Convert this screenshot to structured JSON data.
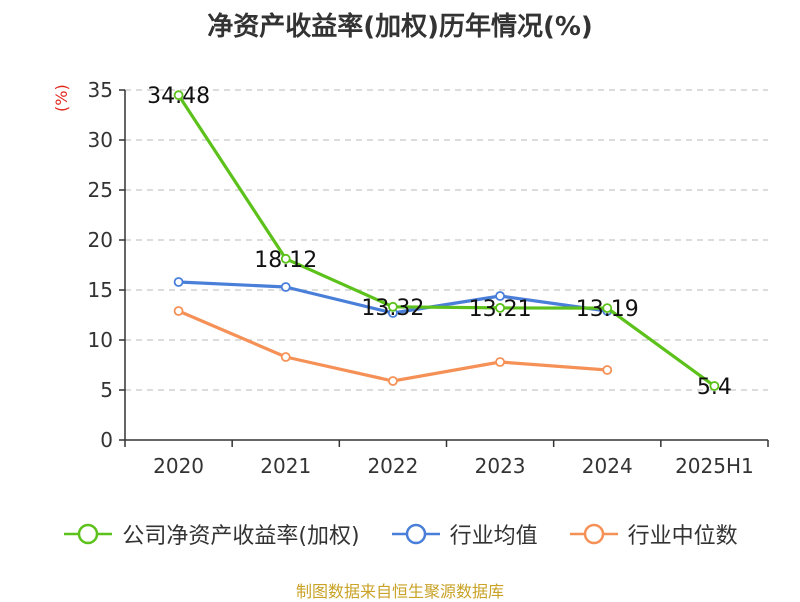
{
  "title": "净资产收益率(加权)历年情况(%)",
  "source": "制图数据来自恒生聚源数据库",
  "chart_data": {
    "type": "line",
    "title": "净资产收益率(加权)历年情况(%)",
    "xlabel": "",
    "ylabel": "(%)",
    "categories": [
      "2020",
      "2021",
      "2022",
      "2023",
      "2024",
      "2025H1"
    ],
    "ylim": [
      0,
      35
    ],
    "yticks": [
      0,
      5,
      10,
      15,
      20,
      25,
      30,
      35
    ],
    "grid": true,
    "legend_position": "bottom",
    "series": [
      {
        "name": "公司净资产收益率(加权)",
        "color": "#5cc21b",
        "values": [
          34.48,
          18.12,
          13.32,
          13.21,
          13.19,
          5.4
        ],
        "labels": [
          "34.48",
          "18.12",
          "13.32",
          "13.21",
          "13.19",
          "5.4"
        ]
      },
      {
        "name": "行业均值",
        "color": "#4a7fd9",
        "values": [
          15.8,
          15.3,
          12.7,
          14.4,
          12.9,
          null
        ]
      },
      {
        "name": "行业中位数",
        "color": "#f59157",
        "values": [
          12.9,
          8.3,
          5.9,
          7.8,
          7.0,
          null
        ]
      }
    ]
  }
}
